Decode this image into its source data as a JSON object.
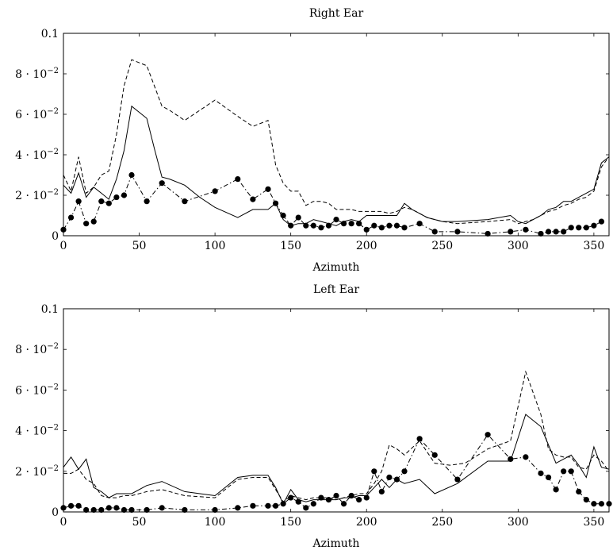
{
  "chart_data": [
    {
      "type": "line",
      "title": "Right Ear",
      "xlabel": "Azimuth",
      "ylabel": "",
      "xlim": [
        0,
        360
      ],
      "ylim": [
        0,
        0.1
      ],
      "xticks": [
        0,
        50,
        100,
        150,
        200,
        250,
        300,
        350
      ],
      "yticks": [
        {
          "value": 0,
          "mantissa": "0",
          "exponent": ""
        },
        {
          "value": 0.02,
          "mantissa": "2 · 10",
          "exponent": "−2"
        },
        {
          "value": 0.04,
          "mantissa": "4 · 10",
          "exponent": "−2"
        },
        {
          "value": 0.06,
          "mantissa": "6 · 10",
          "exponent": "−2"
        },
        {
          "value": 0.08,
          "mantissa": "8 · 10",
          "exponent": "−2"
        },
        {
          "value": 0.1,
          "mantissa": "0.1",
          "exponent": ""
        }
      ],
      "grid": false,
      "series": [
        {
          "style": "solid",
          "x": [
            0,
            5,
            10,
            15,
            20,
            25,
            30,
            35,
            40,
            45,
            50,
            55,
            60,
            65,
            70,
            80,
            90,
            100,
            115,
            125,
            135,
            140,
            145,
            150,
            155,
            160,
            165,
            170,
            175,
            180,
            185,
            190,
            195,
            200,
            205,
            210,
            215,
            220,
            225,
            230,
            235,
            240,
            250,
            260,
            280,
            295,
            300,
            305,
            310,
            315,
            320,
            325,
            330,
            335,
            340,
            345,
            350,
            355,
            360
          ],
          "y": [
            0.025,
            0.021,
            0.031,
            0.019,
            0.024,
            0.021,
            0.018,
            0.028,
            0.042,
            0.064,
            0.061,
            0.058,
            0.043,
            0.029,
            0.028,
            0.025,
            0.019,
            0.014,
            0.009,
            0.013,
            0.013,
            0.016,
            0.008,
            0.005,
            0.006,
            0.006,
            0.008,
            0.007,
            0.006,
            0.005,
            0.007,
            0.008,
            0.007,
            0.01,
            0.01,
            0.01,
            0.01,
            0.01,
            0.016,
            0.013,
            0.011,
            0.009,
            0.007,
            0.007,
            0.008,
            0.01,
            0.007,
            0.006,
            0.008,
            0.01,
            0.013,
            0.014,
            0.017,
            0.017,
            0.019,
            0.021,
            0.023,
            0.036,
            0.039
          ]
        },
        {
          "style": "dashed",
          "x": [
            0,
            5,
            10,
            15,
            20,
            25,
            30,
            35,
            40,
            45,
            55,
            60,
            65,
            70,
            80,
            90,
            100,
            115,
            125,
            135,
            140,
            145,
            150,
            155,
            160,
            165,
            170,
            175,
            180,
            185,
            190,
            195,
            200,
            205,
            210,
            215,
            220,
            225,
            230,
            235,
            240,
            250,
            260,
            280,
            295,
            300,
            305,
            310,
            315,
            320,
            325,
            330,
            335,
            340,
            345,
            350,
            355,
            360
          ],
          "y": [
            0.03,
            0.022,
            0.039,
            0.021,
            0.024,
            0.03,
            0.032,
            0.05,
            0.074,
            0.087,
            0.084,
            0.074,
            0.064,
            0.062,
            0.057,
            0.062,
            0.067,
            0.059,
            0.054,
            0.057,
            0.035,
            0.026,
            0.022,
            0.022,
            0.015,
            0.017,
            0.017,
            0.016,
            0.013,
            0.013,
            0.013,
            0.012,
            0.012,
            0.012,
            0.012,
            0.011,
            0.012,
            0.014,
            0.013,
            0.011,
            0.009,
            0.007,
            0.006,
            0.007,
            0.008,
            0.006,
            0.007,
            0.008,
            0.01,
            0.012,
            0.013,
            0.015,
            0.016,
            0.018,
            0.019,
            0.022,
            0.034,
            0.039
          ]
        },
        {
          "style": "dashdot",
          "marker": "circle",
          "x": [
            0,
            5,
            10,
            15,
            20,
            25,
            30,
            35,
            40,
            45,
            55,
            65,
            80,
            100,
            115,
            125,
            135,
            140,
            145,
            150,
            155,
            160,
            165,
            170,
            175,
            180,
            185,
            190,
            195,
            200,
            205,
            210,
            215,
            220,
            225,
            235,
            245,
            260,
            280,
            295,
            305,
            315,
            320,
            325,
            330,
            335,
            340,
            345,
            350,
            355
          ],
          "y": [
            0.003,
            0.009,
            0.017,
            0.006,
            0.007,
            0.017,
            0.016,
            0.019,
            0.02,
            0.03,
            0.017,
            0.026,
            0.017,
            0.022,
            0.028,
            0.018,
            0.023,
            0.016,
            0.01,
            0.005,
            0.009,
            0.005,
            0.005,
            0.004,
            0.005,
            0.008,
            0.006,
            0.006,
            0.006,
            0.003,
            0.005,
            0.004,
            0.005,
            0.005,
            0.004,
            0.006,
            0.002,
            0.002,
            0.001,
            0.002,
            0.003,
            0.001,
            0.002,
            0.002,
            0.002,
            0.004,
            0.004,
            0.004,
            0.005,
            0.007
          ]
        }
      ]
    },
    {
      "type": "line",
      "title": "Left Ear",
      "xlabel": "Azimuth",
      "ylabel": "",
      "xlim": [
        0,
        360
      ],
      "ylim": [
        0,
        0.1
      ],
      "xticks": [
        0,
        50,
        100,
        150,
        200,
        250,
        300,
        350
      ],
      "yticks": [
        {
          "value": 0,
          "mantissa": "0",
          "exponent": ""
        },
        {
          "value": 0.02,
          "mantissa": "2 · 10",
          "exponent": "−2"
        },
        {
          "value": 0.04,
          "mantissa": "4 · 10",
          "exponent": "−2"
        },
        {
          "value": 0.06,
          "mantissa": "6 · 10",
          "exponent": "−2"
        },
        {
          "value": 0.08,
          "mantissa": "8 · 10",
          "exponent": "−2"
        },
        {
          "value": 0.1,
          "mantissa": "0.1",
          "exponent": ""
        }
      ],
      "grid": false,
      "series": [
        {
          "style": "solid",
          "x": [
            0,
            5,
            10,
            15,
            20,
            25,
            30,
            35,
            40,
            45,
            55,
            65,
            80,
            100,
            115,
            125,
            135,
            140,
            145,
            150,
            155,
            160,
            165,
            170,
            175,
            180,
            185,
            190,
            195,
            200,
            205,
            210,
            215,
            220,
            225,
            235,
            245,
            260,
            280,
            295,
            305,
            315,
            320,
            325,
            330,
            335,
            340,
            345,
            350,
            355,
            360
          ],
          "y": [
            0.022,
            0.027,
            0.021,
            0.026,
            0.012,
            0.01,
            0.007,
            0.009,
            0.009,
            0.009,
            0.013,
            0.015,
            0.01,
            0.008,
            0.017,
            0.018,
            0.018,
            0.012,
            0.004,
            0.011,
            0.006,
            0.005,
            0.006,
            0.006,
            0.006,
            0.006,
            0.007,
            0.007,
            0.008,
            0.008,
            0.012,
            0.016,
            0.012,
            0.016,
            0.014,
            0.016,
            0.009,
            0.014,
            0.025,
            0.025,
            0.048,
            0.042,
            0.033,
            0.024,
            0.026,
            0.028,
            0.023,
            0.017,
            0.032,
            0.022,
            0.021
          ]
        },
        {
          "style": "dashed",
          "x": [
            0,
            5,
            10,
            15,
            20,
            25,
            30,
            35,
            40,
            45,
            55,
            65,
            80,
            100,
            115,
            125,
            135,
            140,
            145,
            150,
            155,
            160,
            165,
            170,
            175,
            180,
            185,
            190,
            195,
            200,
            205,
            210,
            215,
            220,
            225,
            235,
            245,
            255,
            265,
            280,
            295,
            305,
            315,
            320,
            325,
            330,
            335,
            340,
            345,
            350,
            355,
            360
          ],
          "y": [
            0.019,
            0.019,
            0.021,
            0.016,
            0.014,
            0.008,
            0.007,
            0.007,
            0.008,
            0.008,
            0.01,
            0.011,
            0.008,
            0.007,
            0.016,
            0.017,
            0.017,
            0.011,
            0.005,
            0.008,
            0.007,
            0.006,
            0.007,
            0.007,
            0.007,
            0.006,
            0.007,
            0.008,
            0.009,
            0.009,
            0.014,
            0.02,
            0.033,
            0.031,
            0.028,
            0.035,
            0.024,
            0.023,
            0.024,
            0.031,
            0.035,
            0.069,
            0.048,
            0.031,
            0.028,
            0.027,
            0.027,
            0.022,
            0.021,
            0.028,
            0.025,
            0.02
          ]
        },
        {
          "style": "dashdot",
          "marker": "circle",
          "x": [
            0,
            5,
            10,
            15,
            20,
            25,
            30,
            35,
            40,
            45,
            55,
            65,
            80,
            100,
            115,
            125,
            135,
            140,
            145,
            150,
            155,
            160,
            165,
            170,
            175,
            180,
            185,
            190,
            195,
            200,
            205,
            210,
            215,
            220,
            225,
            235,
            245,
            260,
            280,
            295,
            305,
            315,
            320,
            325,
            330,
            335,
            340,
            345,
            350,
            355,
            360
          ],
          "y": [
            0.002,
            0.003,
            0.003,
            0.001,
            0.001,
            0.001,
            0.002,
            0.002,
            0.001,
            0.001,
            0.001,
            0.002,
            0.001,
            0.001,
            0.002,
            0.003,
            0.003,
            0.003,
            0.004,
            0.007,
            0.005,
            0.002,
            0.004,
            0.007,
            0.006,
            0.008,
            0.004,
            0.008,
            0.006,
            0.007,
            0.02,
            0.01,
            0.017,
            0.016,
            0.02,
            0.036,
            0.028,
            0.016,
            0.038,
            0.026,
            0.027,
            0.019,
            0.017,
            0.011,
            0.02,
            0.02,
            0.01,
            0.006,
            0.004,
            0.004,
            0.004
          ]
        }
      ]
    }
  ]
}
